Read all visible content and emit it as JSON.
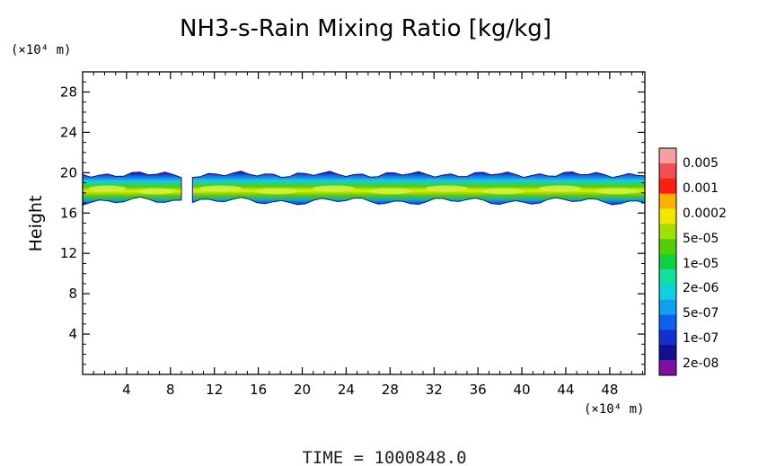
{
  "chart_data": {
    "type": "heatmap",
    "title": "NH3-s-Rain Mixing Ratio [kg/kg]",
    "ylabel": "Height",
    "xlabel": "",
    "x_unit": "(×10⁴ m)",
    "y_unit": "(×10⁴ m)",
    "xlim": [
      0,
      51.2
    ],
    "ylim": [
      0,
      30
    ],
    "x_ticks": [
      4,
      8,
      12,
      16,
      20,
      24,
      28,
      32,
      36,
      40,
      44,
      48
    ],
    "x_tick_labels": [
      "4",
      "8",
      "12",
      "16",
      "20",
      "24",
      "28",
      "32",
      "36",
      "40",
      "44",
      "48"
    ],
    "y_ticks": [
      4,
      8,
      12,
      16,
      20,
      24,
      28
    ],
    "y_tick_labels": [
      "4",
      "8",
      "12",
      "16",
      "20",
      "24",
      "28"
    ],
    "footer": "TIME = 1000848.0",
    "colorbar": {
      "labels": [
        "0.005",
        "0.001",
        "0.0002",
        "5e-05",
        "1e-05",
        "2e-06",
        "5e-07",
        "1e-07",
        "2e-08"
      ],
      "colors": [
        "#f5a0a0",
        "#f05050",
        "#ff2010",
        "#ffb000",
        "#f0e800",
        "#a0e000",
        "#50d000",
        "#10d040",
        "#10e0a0",
        "#10d0e0",
        "#10a0f0",
        "#1060f0",
        "#1030d0",
        "#101090",
        "#8010a0"
      ]
    },
    "cloud_band": {
      "segments": [
        {
          "x_start": 0,
          "x_end": 9.0
        },
        {
          "x_start": 10.0,
          "x_end": 51.2
        }
      ],
      "base_height": 17.0,
      "top_height": 20.0,
      "core_height": 18.3
    }
  }
}
